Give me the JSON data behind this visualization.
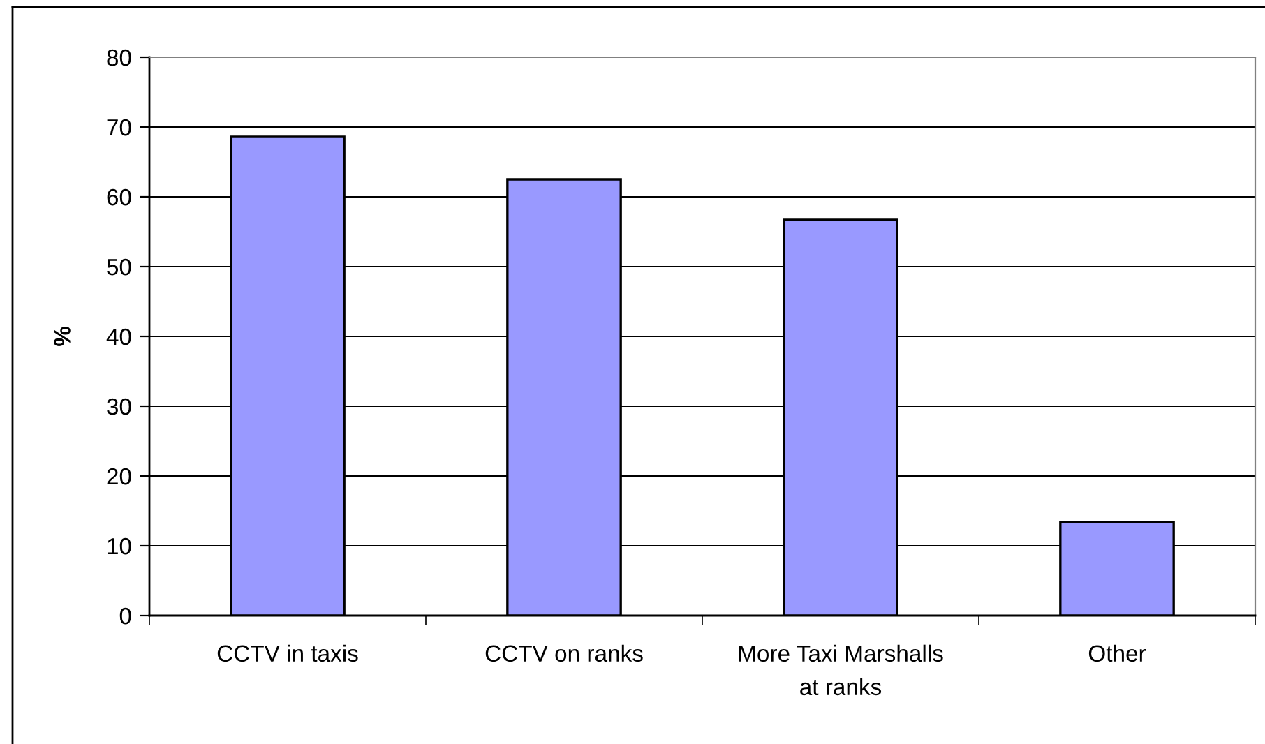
{
  "chart_data": {
    "type": "bar",
    "ylabel": "%",
    "categories": [
      "CCTV in taxis",
      "CCTV on ranks",
      "More Taxi Marshalls\nat ranks",
      "Other"
    ],
    "values": [
      68.6,
      62.5,
      56.7,
      13.4
    ],
    "color": "#9999ff",
    "ylim": [
      0,
      80
    ],
    "yticks": [
      0,
      10,
      20,
      30,
      40,
      50,
      60,
      70,
      80
    ],
    "grid": "y"
  }
}
